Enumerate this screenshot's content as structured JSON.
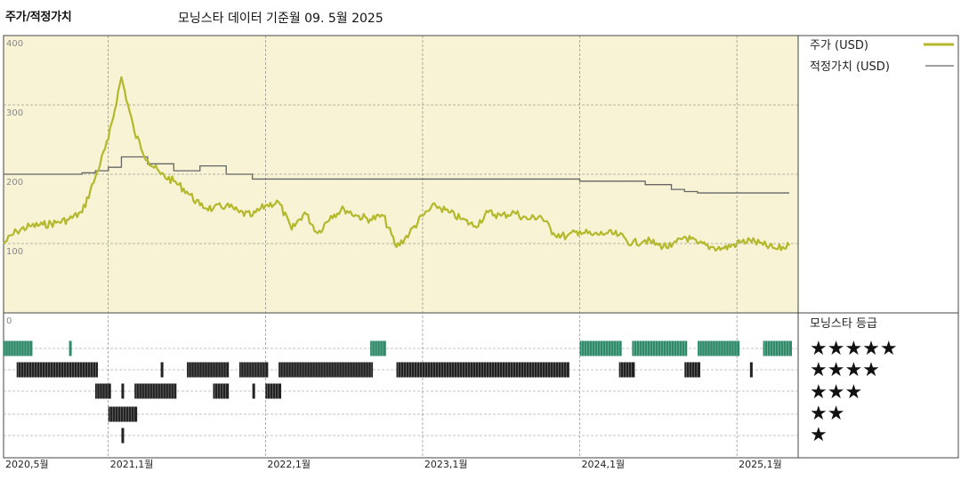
{
  "header": {
    "left_label": "주가/적정가치",
    "subtitle": "모닝스타 데이터 기준월 09. 5월 2025"
  },
  "legend": {
    "price": "주가 (USD)",
    "fair_value": "적정가치 (USD)",
    "rating_title": "모닝스타 등급",
    "stars": [
      "★★★★★",
      "★★★★",
      "★★★",
      "★★",
      "★"
    ]
  },
  "colors": {
    "price_line": "#b4b82c",
    "fair_value_line": "#666666",
    "upper_panel_bg": "#f7f3d4",
    "five_star": "#2f8a69",
    "other_stars": "#222222"
  },
  "chart_data": [
    {
      "type": "line",
      "x_axis": {
        "tick_labels": [
          "2020,5월",
          "2021,1월",
          "2022,1월",
          "2023,1월",
          "2024,1월",
          "2025,1월"
        ],
        "range": [
          "2020-05",
          "2025-05"
        ]
      },
      "y_axis": {
        "tick_labels": [
          "0",
          "100",
          "200",
          "300",
          "400"
        ],
        "ylim": [
          0,
          400
        ]
      },
      "grid": true,
      "legend_position": "right",
      "series": [
        {
          "name": "주가 (USD)",
          "points": [
            [
              "2020-05",
              100
            ],
            [
              "2020-06",
              118
            ],
            [
              "2020-07",
              125
            ],
            [
              "2020-08",
              127
            ],
            [
              "2020-09",
              130
            ],
            [
              "2020-10",
              135
            ],
            [
              "2020-11",
              145
            ],
            [
              "2020-12",
              195
            ],
            [
              "2021-01",
              250
            ],
            [
              "2021-02",
              340
            ],
            [
              "2021-03",
              260
            ],
            [
              "2021-04",
              220
            ],
            [
              "2021-05",
              200
            ],
            [
              "2021-06",
              190
            ],
            [
              "2021-07",
              175
            ],
            [
              "2021-08",
              155
            ],
            [
              "2021-09",
              150
            ],
            [
              "2021-10",
              155
            ],
            [
              "2021-11",
              145
            ],
            [
              "2021-12",
              140
            ],
            [
              "2022-01",
              155
            ],
            [
              "2022-02",
              160
            ],
            [
              "2022-03",
              120
            ],
            [
              "2022-04",
              145
            ],
            [
              "2022-05",
              115
            ],
            [
              "2022-06",
              140
            ],
            [
              "2022-07",
              150
            ],
            [
              "2022-08",
              140
            ],
            [
              "2022-09",
              135
            ],
            [
              "2022-10",
              140
            ],
            [
              "2022-11",
              95
            ],
            [
              "2022-12",
              115
            ],
            [
              "2023-01",
              140
            ],
            [
              "2023-02",
              155
            ],
            [
              "2023-03",
              145
            ],
            [
              "2023-04",
              135
            ],
            [
              "2023-05",
              125
            ],
            [
              "2023-06",
              145
            ],
            [
              "2023-07",
              140
            ],
            [
              "2023-08",
              145
            ],
            [
              "2023-09",
              135
            ],
            [
              "2023-10",
              140
            ],
            [
              "2023-11",
              115
            ],
            [
              "2023-12",
              110
            ],
            [
              "2024-01",
              118
            ],
            [
              "2024-02",
              112
            ],
            [
              "2024-03",
              115
            ],
            [
              "2024-04",
              112
            ],
            [
              "2024-05",
              100
            ],
            [
              "2024-06",
              105
            ],
            [
              "2024-07",
              98
            ],
            [
              "2024-08",
              95
            ],
            [
              "2024-09",
              110
            ],
            [
              "2024-10",
              100
            ],
            [
              "2024-11",
              95
            ],
            [
              "2024-12",
              93
            ],
            [
              "2025-01",
              100
            ],
            [
              "2025-02",
              105
            ],
            [
              "2025-03",
              98
            ],
            [
              "2025-04",
              92
            ],
            [
              "2025-05",
              97
            ]
          ]
        },
        {
          "name": "적정가치 (USD)",
          "points": [
            [
              "2020-05",
              200
            ],
            [
              "2020-10",
              200
            ],
            [
              "2020-11",
              202
            ],
            [
              "2020-12",
              205
            ],
            [
              "2021-01",
              210
            ],
            [
              "2021-02",
              225
            ],
            [
              "2021-04",
              215
            ],
            [
              "2021-06",
              205
            ],
            [
              "2021-08",
              212
            ],
            [
              "2021-10",
              200
            ],
            [
              "2021-12",
              193
            ],
            [
              "2023-12",
              193
            ],
            [
              "2024-01",
              190
            ],
            [
              "2024-05",
              190
            ],
            [
              "2024-06",
              185
            ],
            [
              "2024-08",
              178
            ],
            [
              "2024-09",
              175
            ],
            [
              "2024-10",
              173
            ],
            [
              "2025-05",
              173
            ]
          ]
        }
      ]
    },
    {
      "type": "bar",
      "title": "모닝스타 등급",
      "rows": [
        "★★★★★",
        "★★★★",
        "★★★",
        "★★",
        "★"
      ],
      "ranges": {
        "★★★★★": [
          [
            "2020-05",
            "2020-07"
          ],
          [
            "2020-10",
            "2020-10"
          ],
          [
            "2022-09",
            "2022-10"
          ],
          [
            "2024-01",
            "2024-04"
          ],
          [
            "2024-05",
            "2024-09"
          ],
          [
            "2024-10",
            "2025-01"
          ],
          [
            "2025-03",
            "2025-05"
          ]
        ],
        "★★★★": [
          [
            "2020-06",
            "2020-12"
          ],
          [
            "2021-05",
            "2021-05"
          ],
          [
            "2021-07",
            "2021-10"
          ],
          [
            "2021-11",
            "2022-01"
          ],
          [
            "2022-02",
            "2022-09"
          ],
          [
            "2022-11",
            "2023-12"
          ],
          [
            "2024-04",
            "2024-05"
          ],
          [
            "2024-09",
            "2024-10"
          ],
          [
            "2025-02",
            "2025-02"
          ]
        ],
        "★★★": [
          [
            "2020-12",
            "2021-01"
          ],
          [
            "2021-02",
            "2021-02"
          ],
          [
            "2021-03",
            "2021-06"
          ],
          [
            "2021-09",
            "2021-10"
          ],
          [
            "2021-12",
            "2021-12"
          ],
          [
            "2022-01",
            "2022-02"
          ]
        ],
        "★★": [
          [
            "2021-01",
            "2021-03"
          ]
        ],
        "★": [
          [
            "2021-02",
            "2021-02"
          ]
        ]
      }
    }
  ]
}
